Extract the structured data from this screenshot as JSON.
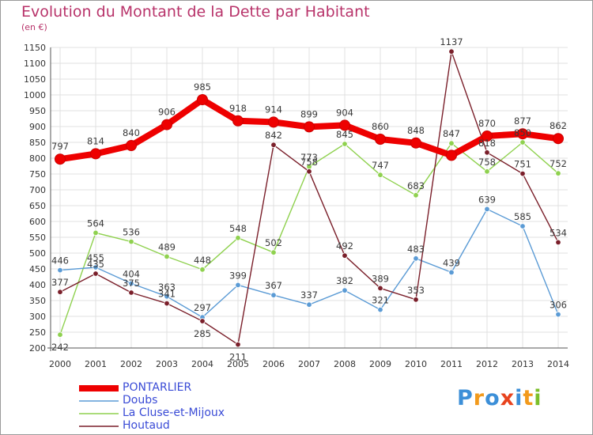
{
  "header": {
    "title": "Evolution du Montant de la Dette par Habitant",
    "subtitle": "(en €)"
  },
  "logo": {
    "text": "Proxiti",
    "colors": [
      "#3c8fd8",
      "#f29a1c",
      "#3c8fd8",
      "#e8431e",
      "#3c8fd8",
      "#f29a1c",
      "#7bbf2a"
    ]
  },
  "chart_data": {
    "type": "line",
    "title": "Evolution du Montant de la Dette par Habitant",
    "subtitle": "(en €)",
    "x": [
      "2000",
      "2001",
      "2002",
      "2003",
      "2004",
      "2005",
      "2006",
      "2007",
      "2008",
      "2009",
      "2010",
      "2011",
      "2012",
      "2013",
      "2014"
    ],
    "ylim": [
      200,
      1150
    ],
    "yticks": [
      200,
      250,
      300,
      350,
      400,
      450,
      500,
      550,
      600,
      650,
      700,
      750,
      800,
      850,
      900,
      950,
      1000,
      1050,
      1100,
      1150
    ],
    "grid": true,
    "legend_position": "bottom-left",
    "series": [
      {
        "name": "PONTARLIER",
        "color": "#ee0000",
        "values": [
          797,
          814,
          840,
          906,
          985,
          918,
          914,
          899,
          904,
          860,
          848,
          809,
          870,
          877,
          862
        ],
        "labels": [
          "797",
          "814",
          "840",
          "906",
          "985",
          "918",
          "914",
          "899",
          "904",
          "860",
          "848",
          "",
          "870",
          "877",
          "862"
        ]
      },
      {
        "name": "Doubs",
        "color": "#5b9bd5",
        "values": [
          446,
          455,
          404,
          363,
          297,
          399,
          367,
          337,
          382,
          321,
          483,
          439,
          639,
          585,
          306
        ],
        "labels": [
          "446",
          "455",
          "404",
          "363",
          "297",
          "399",
          "367",
          "337",
          "382",
          "321",
          "483",
          "439",
          "639",
          "585",
          "306"
        ]
      },
      {
        "name": "La Cluse-et-Mijoux",
        "color": "#8fd14f",
        "values": [
          242,
          564,
          536,
          489,
          448,
          548,
          502,
          773,
          845,
          747,
          683,
          847,
          758,
          850,
          752
        ],
        "labels": [
          "242",
          "564",
          "536",
          "489",
          "448",
          "548",
          "502",
          "773",
          "845",
          "747",
          "683",
          "847",
          "758",
          "850",
          "752"
        ]
      },
      {
        "name": "Houtaud",
        "color": "#7a1f2a",
        "values": [
          377,
          435,
          375,
          341,
          285,
          211,
          842,
          758,
          492,
          389,
          353,
          1137,
          818,
          751,
          534
        ],
        "labels": [
          "377",
          "435",
          "375",
          "341",
          "285",
          "211",
          "842",
          "758",
          "492",
          "389",
          "353",
          "1137",
          "818",
          "751",
          "534"
        ]
      }
    ]
  }
}
